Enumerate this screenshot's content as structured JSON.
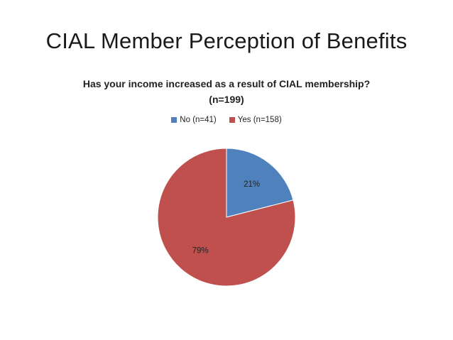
{
  "slide": {
    "title": "CIAL Member Perception of Benefits"
  },
  "chart_data": {
    "type": "pie",
    "title": "Has your income increased as a result of CIAL membership? (n=199)",
    "title_lines": [
      "Has your income increased as a result of CIAL membership?",
      "(n=199)"
    ],
    "legend_placement": "top",
    "categories": [
      "No (n=41)",
      "Yes (n=158)"
    ],
    "values": [
      21,
      79
    ],
    "labels": [
      "21%",
      "79%"
    ],
    "colors": [
      "#4f81bd",
      "#c0504d"
    ]
  }
}
